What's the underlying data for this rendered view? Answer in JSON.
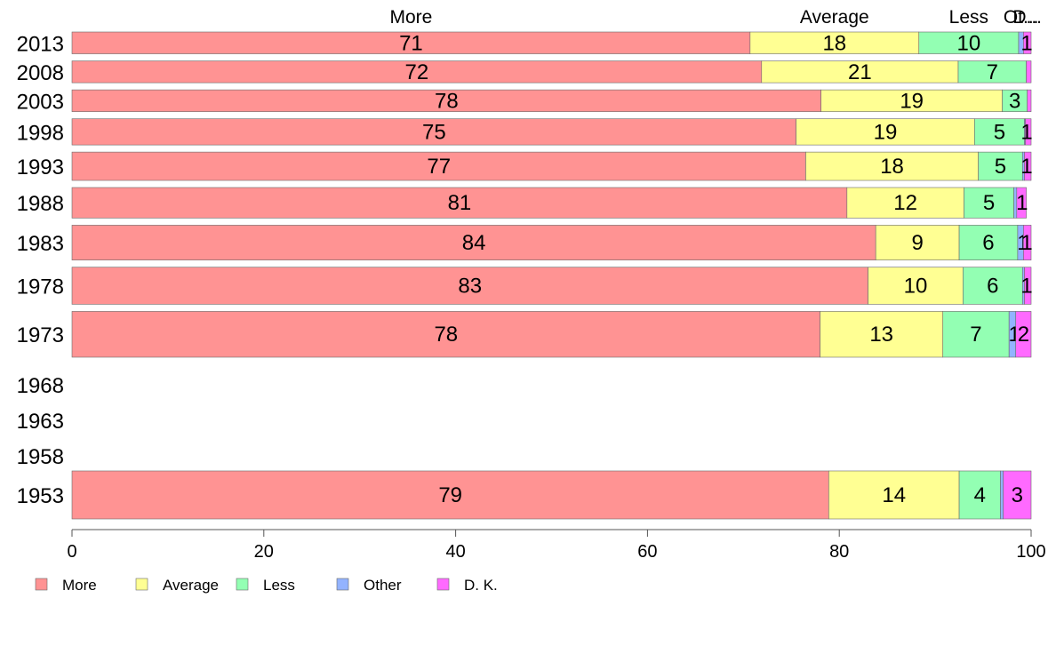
{
  "chart_data": {
    "type": "bar",
    "orientation": "horizontal",
    "stacked": true,
    "categories": [
      "2013",
      "2008",
      "2003",
      "1998",
      "1993",
      "1988",
      "1983",
      "1978",
      "1973",
      "1968",
      "1963",
      "1958",
      "1953"
    ],
    "series": [
      {
        "name": "More",
        "color": "#ff9393",
        "values": [
          70.7,
          71.9,
          78.1,
          75.5,
          76.5,
          80.8,
          83.8,
          83.0,
          78.0,
          null,
          null,
          null,
          78.9
        ]
      },
      {
        "name": "Average",
        "color": "#ffff93",
        "values": [
          17.6,
          20.5,
          18.9,
          18.6,
          18.0,
          12.2,
          8.7,
          9.9,
          12.8,
          null,
          null,
          null,
          13.6
        ]
      },
      {
        "name": "Less",
        "color": "#93ffb3",
        "values": [
          10.4,
          7.1,
          2.6,
          5.2,
          4.6,
          5.2,
          6.1,
          6.2,
          6.9,
          null,
          null,
          null,
          4.3
        ]
      },
      {
        "name": "Other",
        "color": "#93b3ff",
        "values": [
          0.5,
          0.0,
          0.0,
          0.1,
          0.2,
          0.3,
          0.6,
          0.2,
          0.7,
          null,
          null,
          null,
          0.3
        ]
      },
      {
        "name": "D. K.",
        "color": "#ff6aff",
        "values": [
          0.8,
          0.5,
          0.4,
          0.6,
          0.7,
          1.0,
          0.8,
          0.7,
          1.6,
          null,
          null,
          null,
          2.9
        ]
      }
    ],
    "data_labels": [
      [
        "71",
        "18",
        "10",
        "",
        "1"
      ],
      [
        "72",
        "21",
        "7",
        "",
        ""
      ],
      [
        "78",
        "19",
        "3",
        "",
        ""
      ],
      [
        "75",
        "19",
        "5",
        "",
        "1"
      ],
      [
        "77",
        "18",
        "5",
        "",
        "1"
      ],
      [
        "81",
        "12",
        "5",
        "",
        "1"
      ],
      [
        "84",
        "9",
        "6",
        "1",
        "1"
      ],
      [
        "83",
        "10",
        "6",
        "",
        "1"
      ],
      [
        "78",
        "13",
        "7",
        "1",
        "2"
      ],
      [
        "",
        "",
        "",
        "",
        ""
      ],
      [
        "",
        "",
        "",
        "",
        ""
      ],
      [
        "",
        "",
        "",
        "",
        ""
      ],
      [
        "79",
        "14",
        "4",
        "",
        "3"
      ]
    ],
    "bar_thickness_weights": [
      1.0,
      1.0,
      1.0,
      1.2,
      1.3,
      1.4,
      1.6,
      1.7,
      2.1,
      0,
      0,
      0,
      2.2
    ],
    "top_labels": [
      "More",
      "Average",
      "Less",
      "Ot...",
      "D..."
    ],
    "xlim": [
      0,
      100
    ],
    "xticks": [
      0,
      20,
      40,
      60,
      80,
      100
    ],
    "title": "",
    "xlabel": "",
    "ylabel": "",
    "legend": {
      "position": "bottom-left",
      "entries": [
        "More",
        "Average",
        "Less",
        "Other",
        "D. K."
      ]
    }
  }
}
